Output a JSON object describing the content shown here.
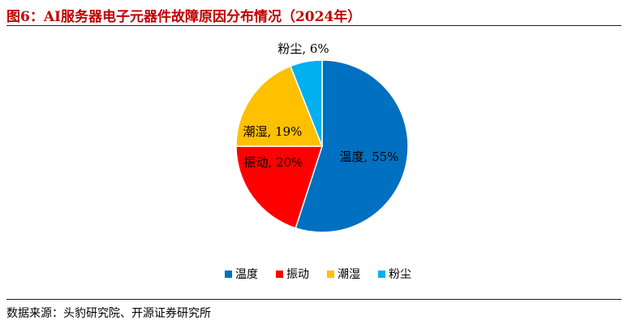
{
  "title": "图6：AI服务器电子元器件故障原因分布情况（2024年）",
  "source": "数据来源：头豹研究院、开源证券研究所",
  "chart_data": {
    "type": "pie",
    "title": "图6：AI服务器电子元器件故障原因分布情况（2024年）",
    "slices": [
      {
        "label": "温度",
        "value": 55,
        "data_label": "温度, 55%",
        "color": "#0070c0"
      },
      {
        "label": "振动",
        "value": 20,
        "data_label": "振动, 20%",
        "color": "#ff0000"
      },
      {
        "label": "潮湿",
        "value": 19,
        "data_label": "潮湿, 19%",
        "color": "#ffc000"
      },
      {
        "label": "粉尘",
        "value": 6,
        "data_label": "粉尘, 6%",
        "color": "#00b0f0"
      }
    ],
    "legend": {
      "placement": "bottom",
      "items": [
        "温度",
        "振动",
        "潮湿",
        "粉尘"
      ]
    },
    "start_angle": "12 o'clock",
    "direction": "clockwise"
  }
}
